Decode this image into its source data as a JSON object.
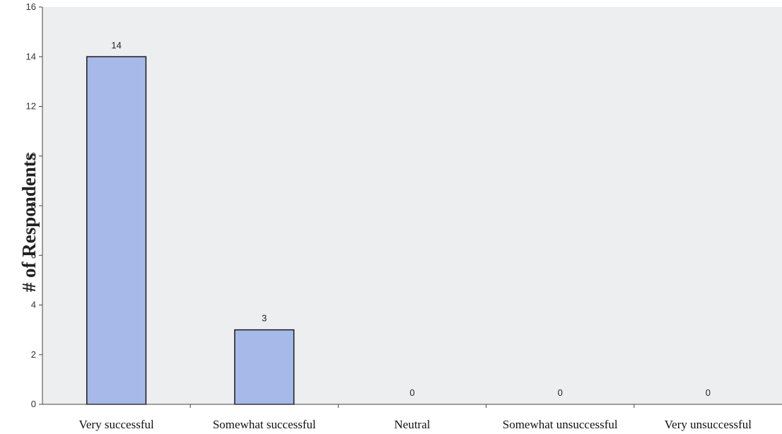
{
  "chart_data": {
    "type": "bar",
    "title": "",
    "xlabel": "",
    "ylabel": "# of Respondents",
    "categories": [
      "Very successful",
      "Somewhat successful",
      "Neutral",
      "Somewhat unsuccessful",
      "Very unsuccessful"
    ],
    "values": [
      14,
      3,
      0,
      0,
      0
    ],
    "ylim": [
      0,
      16
    ],
    "yticks": [
      "0",
      "2",
      "4",
      "6",
      "8",
      "10",
      "12",
      "14",
      "16"
    ],
    "data_labels": [
      "14",
      "3",
      "0",
      "0",
      "0"
    ],
    "grid": false,
    "legend": "none"
  },
  "colors": {
    "plot_background": "#eceef0",
    "bar_fill": "#a7b9e8",
    "bar_stroke": "#1a1a1a",
    "axis": "#444444"
  }
}
